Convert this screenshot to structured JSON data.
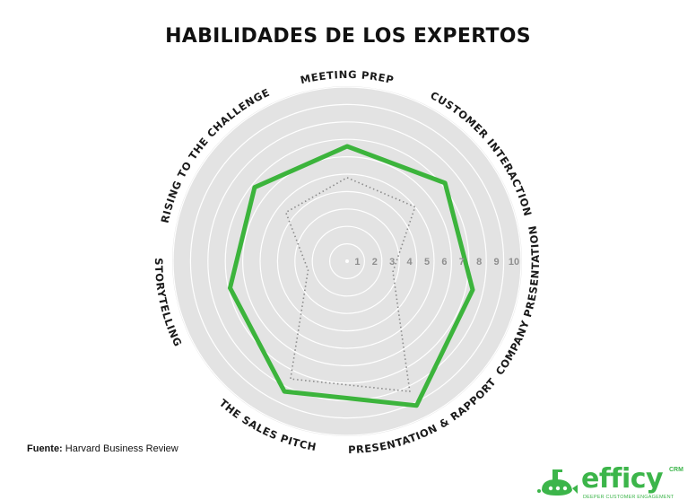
{
  "title": "HABILIDADES DE LOS EXPERTOS",
  "source": {
    "label": "Fuente:",
    "text": "Harvard Business Review"
  },
  "brand": {
    "name": "efficy",
    "suffix": "CRM",
    "tagline": "DEEPER CUSTOMER ENGAGEMENT",
    "color": "#3cb54a"
  },
  "chart_data": {
    "type": "radar",
    "axes": [
      "MEETING PREP",
      "CUSTOMER INTERACTION",
      "COMPANY PRESENTATION",
      "PRESENTATION & RAPPORT",
      "THE SALES PITCH",
      "STORYTELLING",
      "RISING TO THE CHALLENGE"
    ],
    "scale": {
      "min": 0,
      "max": 10,
      "ticks": [
        1,
        2,
        3,
        4,
        5,
        6,
        7,
        8,
        9,
        10
      ]
    },
    "series": [
      {
        "style": "solid",
        "color": "#3cb43c",
        "values": [
          6.6,
          7.2,
          7.4,
          9.2,
          8.3,
          6.9,
          6.8
        ]
      },
      {
        "style": "dotted",
        "color": "#8a8a8a",
        "values": [
          4.8,
          5.0,
          2.7,
          8.3,
          7.5,
          2.3,
          4.5
        ]
      }
    ]
  }
}
